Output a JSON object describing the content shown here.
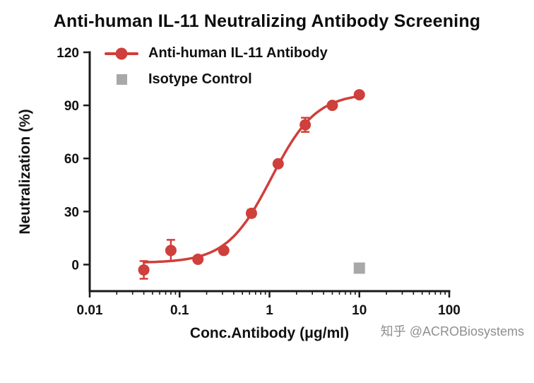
{
  "chart_data": {
    "type": "scatter",
    "title": "Anti-human IL-11 Neutralizing Antibody Screening",
    "xlabel": "Conc.Antibody (μg/ml)",
    "ylabel": "Neutralization (%)",
    "x_scale": "log",
    "xlim": [
      0.01,
      100
    ],
    "ylim": [
      -15,
      120
    ],
    "x_ticks": [
      0.01,
      0.1,
      1,
      10,
      100
    ],
    "y_ticks": [
      0,
      30,
      60,
      90,
      120
    ],
    "grid": false,
    "legend_position": "top-left-inside",
    "axis_color": "#1a1a1a",
    "series": [
      {
        "name": "Anti-human IL-11 Antibody",
        "color": "#cf3f3b",
        "marker": "circle",
        "x": [
          0.04,
          0.08,
          0.16,
          0.31,
          0.63,
          1.25,
          2.5,
          5,
          10
        ],
        "y": [
          -3,
          8,
          3,
          8,
          29,
          57,
          79,
          90,
          96
        ],
        "yerr": [
          5,
          6,
          0,
          0,
          2,
          0,
          4,
          0,
          0
        ],
        "fit": {
          "type": "4PL",
          "bottom": 1,
          "top": 97,
          "ec50": 1.05,
          "hill": 1.75
        }
      },
      {
        "name": "Isotype Control",
        "color": "#a8a8a8",
        "marker": "square",
        "x": [
          10
        ],
        "y": [
          -2
        ],
        "yerr": [
          0
        ]
      }
    ]
  },
  "watermark": {
    "text": "知乎 @ACROBiosystems"
  }
}
